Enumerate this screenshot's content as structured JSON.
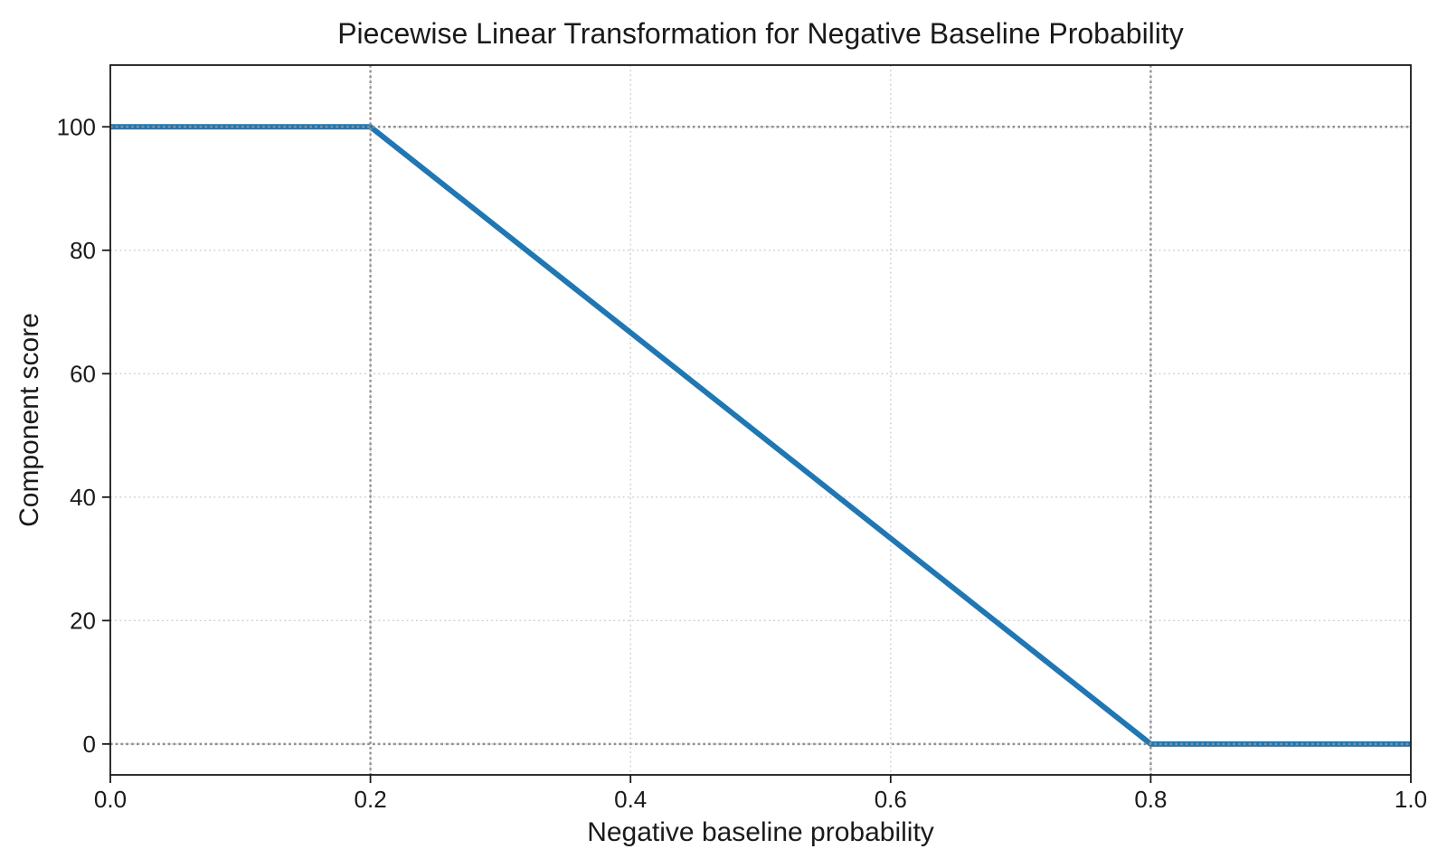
{
  "chart_data": {
    "type": "line",
    "title": "Piecewise Linear Transformation for Negative Baseline Probability",
    "xlabel": "Negative baseline probability",
    "ylabel": "Component score",
    "series": [
      {
        "name": "piecewise-linear-transform",
        "x": [
          0.0,
          0.2,
          0.8,
          1.0
        ],
        "y": [
          100,
          100,
          0,
          0
        ],
        "color": "#1f77b4",
        "linewidth": 6
      }
    ],
    "xlim": [
      0.0,
      1.0
    ],
    "ylim": [
      -5,
      110
    ],
    "xticks": [
      {
        "value": 0.0,
        "label": "0.0"
      },
      {
        "value": 0.2,
        "label": "0.2"
      },
      {
        "value": 0.4,
        "label": "0.4"
      },
      {
        "value": 0.6,
        "label": "0.6"
      },
      {
        "value": 0.8,
        "label": "0.8"
      },
      {
        "value": 1.0,
        "label": "1.0"
      }
    ],
    "yticks": [
      {
        "value": 0,
        "label": "0"
      },
      {
        "value": 20,
        "label": "20"
      },
      {
        "value": 40,
        "label": "40"
      },
      {
        "value": 60,
        "label": "60"
      },
      {
        "value": 80,
        "label": "80"
      },
      {
        "value": 100,
        "label": "100"
      }
    ],
    "grid": {
      "on": true,
      "style": "dotted",
      "color": "#cccccc"
    },
    "guides": {
      "x_values": [
        0.2,
        0.8
      ],
      "y_values": [
        0,
        100
      ],
      "style": "dotted",
      "color": "#8f8f8f"
    },
    "legend": "none",
    "background_color": "#ffffff",
    "axis_color": "#1a1a1a"
  }
}
